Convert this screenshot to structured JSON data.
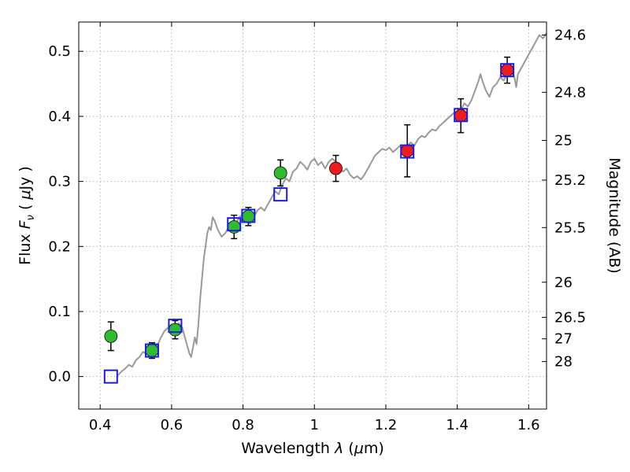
{
  "figure": {
    "background": "#ffffff"
  },
  "chart_data": {
    "type": "line",
    "title": "",
    "xlabel_parts": [
      {
        "t": "Wavelength  "
      },
      {
        "t": "λ",
        "style": "italic"
      },
      {
        "t": " ("
      },
      {
        "t": "μ",
        "style": "italic"
      },
      {
        "t": "m)"
      }
    ],
    "ylabel_left_parts": [
      {
        "t": "Flux  "
      },
      {
        "t": "F",
        "style": "italic"
      },
      {
        "t": "ν",
        "style": "sub-italic"
      },
      {
        "t": "  ( "
      },
      {
        "t": "μ",
        "style": "italic"
      },
      {
        "t": "Jy )"
      }
    ],
    "ylabel_right": "Magnitude (AB)",
    "xlim": [
      0.34,
      1.65
    ],
    "ylim": [
      -0.05,
      0.545
    ],
    "grid": true,
    "legend": "none",
    "x_ticks": [
      {
        "value": 0.4,
        "label": "0.4"
      },
      {
        "value": 0.6,
        "label": "0.6"
      },
      {
        "value": 0.8,
        "label": "0.8"
      },
      {
        "value": 1.0,
        "label": "1"
      },
      {
        "value": 1.2,
        "label": "1.2"
      },
      {
        "value": 1.4,
        "label": "1.4"
      },
      {
        "value": 1.6,
        "label": "1.6"
      }
    ],
    "y_ticks_left": [
      {
        "value": 0.0,
        "label": "0.0"
      },
      {
        "value": 0.1,
        "label": "0.1"
      },
      {
        "value": 0.2,
        "label": "0.2"
      },
      {
        "value": 0.3,
        "label": "0.3"
      },
      {
        "value": 0.4,
        "label": "0.4"
      },
      {
        "value": 0.5,
        "label": "0.5"
      }
    ],
    "y_ticks_right": [
      {
        "flux": 0.525,
        "label": "24.6"
      },
      {
        "flux": 0.437,
        "label": "24.8"
      },
      {
        "flux": 0.363,
        "label": "25"
      },
      {
        "flux": 0.302,
        "label": "25.2"
      },
      {
        "flux": 0.229,
        "label": "25.5"
      },
      {
        "flux": 0.145,
        "label": "26"
      },
      {
        "flux": 0.091,
        "label": "26.5"
      },
      {
        "flux": 0.058,
        "label": "27"
      },
      {
        "flux": 0.023,
        "label": "28"
      }
    ],
    "colors": {
      "spectrum": "#999999",
      "green": "#2fbb2f",
      "red": "#ee1c1c",
      "blue": "#1a1aee",
      "errorbar": "#000000",
      "grid": "#b3b3b3",
      "frame": "#000000"
    },
    "spectrum": {
      "name": "model-spectrum",
      "points": [
        [
          0.45,
          0.002
        ],
        [
          0.46,
          0.008
        ],
        [
          0.47,
          0.012
        ],
        [
          0.48,
          0.018
        ],
        [
          0.49,
          0.015
        ],
        [
          0.5,
          0.025
        ],
        [
          0.51,
          0.03
        ],
        [
          0.52,
          0.038
        ],
        [
          0.53,
          0.035
        ],
        [
          0.54,
          0.045
        ],
        [
          0.55,
          0.05
        ],
        [
          0.56,
          0.048
        ],
        [
          0.57,
          0.06
        ],
        [
          0.58,
          0.07
        ],
        [
          0.59,
          0.075
        ],
        [
          0.6,
          0.08
        ],
        [
          0.61,
          0.078
        ],
        [
          0.62,
          0.082
        ],
        [
          0.63,
          0.075
        ],
        [
          0.64,
          0.055
        ],
        [
          0.65,
          0.035
        ],
        [
          0.655,
          0.03
        ],
        [
          0.66,
          0.045
        ],
        [
          0.665,
          0.06
        ],
        [
          0.67,
          0.05
        ],
        [
          0.675,
          0.08
        ],
        [
          0.68,
          0.12
        ],
        [
          0.69,
          0.18
        ],
        [
          0.7,
          0.22
        ],
        [
          0.705,
          0.23
        ],
        [
          0.71,
          0.225
        ],
        [
          0.715,
          0.245
        ],
        [
          0.72,
          0.24
        ],
        [
          0.73,
          0.225
        ],
        [
          0.74,
          0.215
        ],
        [
          0.75,
          0.22
        ],
        [
          0.76,
          0.23
        ],
        [
          0.77,
          0.228
        ],
        [
          0.78,
          0.235
        ],
        [
          0.79,
          0.245
        ],
        [
          0.8,
          0.25
        ],
        [
          0.81,
          0.242
        ],
        [
          0.82,
          0.235
        ],
        [
          0.83,
          0.245
        ],
        [
          0.84,
          0.255
        ],
        [
          0.85,
          0.26
        ],
        [
          0.86,
          0.255
        ],
        [
          0.87,
          0.265
        ],
        [
          0.88,
          0.275
        ],
        [
          0.89,
          0.285
        ],
        [
          0.9,
          0.28
        ],
        [
          0.91,
          0.295
        ],
        [
          0.92,
          0.305
        ],
        [
          0.93,
          0.3
        ],
        [
          0.94,
          0.315
        ],
        [
          0.95,
          0.32
        ],
        [
          0.96,
          0.33
        ],
        [
          0.97,
          0.325
        ],
        [
          0.98,
          0.318
        ],
        [
          0.99,
          0.33
        ],
        [
          1.0,
          0.335
        ],
        [
          1.01,
          0.325
        ],
        [
          1.02,
          0.33
        ],
        [
          1.03,
          0.32
        ],
        [
          1.04,
          0.33
        ],
        [
          1.05,
          0.335
        ],
        [
          1.06,
          0.33
        ],
        [
          1.07,
          0.32
        ],
        [
          1.08,
          0.315
        ],
        [
          1.09,
          0.32
        ],
        [
          1.1,
          0.31
        ],
        [
          1.11,
          0.305
        ],
        [
          1.12,
          0.308
        ],
        [
          1.13,
          0.303
        ],
        [
          1.14,
          0.31
        ],
        [
          1.15,
          0.32
        ],
        [
          1.16,
          0.33
        ],
        [
          1.17,
          0.34
        ],
        [
          1.18,
          0.345
        ],
        [
          1.19,
          0.35
        ],
        [
          1.2,
          0.348
        ],
        [
          1.21,
          0.352
        ],
        [
          1.22,
          0.345
        ],
        [
          1.23,
          0.35
        ],
        [
          1.24,
          0.355
        ],
        [
          1.25,
          0.35
        ],
        [
          1.26,
          0.355
        ],
        [
          1.27,
          0.36
        ],
        [
          1.28,
          0.355
        ],
        [
          1.29,
          0.365
        ],
        [
          1.3,
          0.37
        ],
        [
          1.31,
          0.368
        ],
        [
          1.32,
          0.375
        ],
        [
          1.33,
          0.38
        ],
        [
          1.34,
          0.378
        ],
        [
          1.35,
          0.385
        ],
        [
          1.36,
          0.39
        ],
        [
          1.37,
          0.395
        ],
        [
          1.38,
          0.4
        ],
        [
          1.39,
          0.405
        ],
        [
          1.4,
          0.4
        ],
        [
          1.41,
          0.41
        ],
        [
          1.42,
          0.42
        ],
        [
          1.43,
          0.415
        ],
        [
          1.44,
          0.425
        ],
        [
          1.45,
          0.44
        ],
        [
          1.46,
          0.455
        ],
        [
          1.465,
          0.465
        ],
        [
          1.47,
          0.455
        ],
        [
          1.48,
          0.44
        ],
        [
          1.49,
          0.43
        ],
        [
          1.5,
          0.445
        ],
        [
          1.51,
          0.45
        ],
        [
          1.52,
          0.46
        ],
        [
          1.53,
          0.455
        ],
        [
          1.54,
          0.465
        ],
        [
          1.55,
          0.47
        ],
        [
          1.56,
          0.46
        ],
        [
          1.565,
          0.445
        ],
        [
          1.57,
          0.465
        ],
        [
          1.58,
          0.475
        ],
        [
          1.59,
          0.485
        ],
        [
          1.6,
          0.495
        ],
        [
          1.61,
          0.505
        ],
        [
          1.62,
          0.515
        ],
        [
          1.63,
          0.525
        ],
        [
          1.64,
          0.52
        ],
        [
          1.65,
          0.528
        ]
      ]
    },
    "series": [
      {
        "name": "green-photometry",
        "marker": "circle",
        "color_key": "green",
        "points": [
          {
            "x": 0.43,
            "y": 0.062,
            "yerr": 0.022
          },
          {
            "x": 0.545,
            "y": 0.04,
            "yerr": 0.012
          },
          {
            "x": 0.61,
            "y": 0.072,
            "yerr": 0.014
          },
          {
            "x": 0.775,
            "y": 0.23,
            "yerr": 0.018
          },
          {
            "x": 0.815,
            "y": 0.246,
            "yerr": 0.014
          },
          {
            "x": 0.905,
            "y": 0.313,
            "yerr": 0.02
          }
        ]
      },
      {
        "name": "red-photometry",
        "marker": "circle",
        "color_key": "red",
        "points": [
          {
            "x": 1.06,
            "y": 0.32,
            "yerr": 0.02
          },
          {
            "x": 1.26,
            "y": 0.347,
            "yerr": 0.04
          },
          {
            "x": 1.41,
            "y": 0.401,
            "yerr": 0.026
          },
          {
            "x": 1.54,
            "y": 0.471,
            "yerr": 0.02
          }
        ]
      },
      {
        "name": "model-photometry-squares",
        "marker": "square",
        "color_key": "blue",
        "points": [
          {
            "x": 0.43,
            "y": 0.0
          },
          {
            "x": 0.545,
            "y": 0.04
          },
          {
            "x": 0.61,
            "y": 0.078
          },
          {
            "x": 0.775,
            "y": 0.234
          },
          {
            "x": 0.815,
            "y": 0.247
          },
          {
            "x": 0.905,
            "y": 0.28
          },
          {
            "x": 1.26,
            "y": 0.346
          },
          {
            "x": 1.41,
            "y": 0.402
          },
          {
            "x": 1.54,
            "y": 0.471
          }
        ]
      }
    ]
  }
}
